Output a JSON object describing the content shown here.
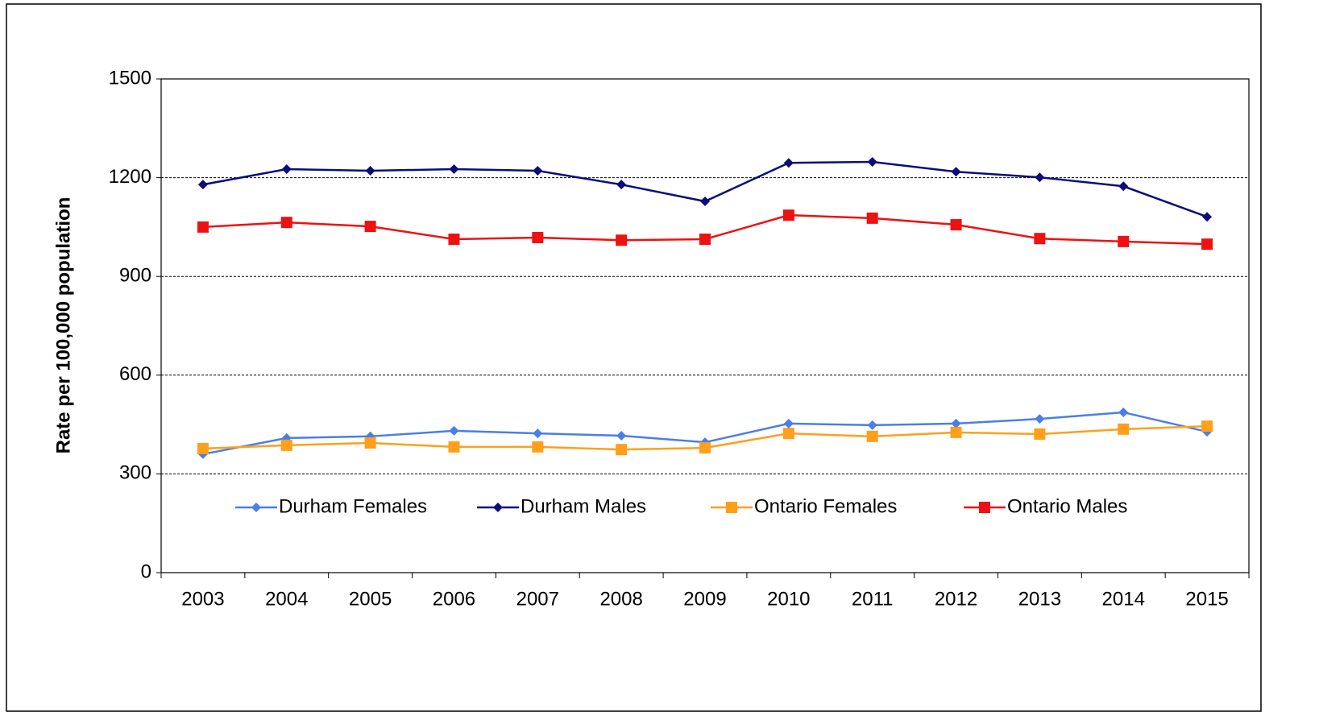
{
  "chart_data": {
    "type": "line",
    "y_label": "Rate per 100,000 population",
    "categories": [
      "2003",
      "2004",
      "2005",
      "2006",
      "2007",
      "2008",
      "2009",
      "2010",
      "2011",
      "2012",
      "2013",
      "2014",
      "2015"
    ],
    "series": [
      {
        "name": "Durham Females",
        "color": "#4a7ee8",
        "marker": "diamond",
        "values": [
          360,
          409,
          414,
          431,
          423,
          416,
          396,
          453,
          448,
          453,
          467,
          487,
          428
        ]
      },
      {
        "name": "Durham Males",
        "color": "#0c0c7a",
        "marker": "diamond",
        "values": [
          1179,
          1226,
          1221,
          1226,
          1221,
          1179,
          1128,
          1245,
          1248,
          1218,
          1201,
          1174,
          1081
        ]
      },
      {
        "name": "Ontario Females",
        "color": "#ff9f1c",
        "marker": "square",
        "values": [
          377,
          387,
          394,
          382,
          382,
          374,
          379,
          423,
          414,
          426,
          421,
          436,
          445
        ]
      },
      {
        "name": "Ontario Males",
        "color": "#ee1111",
        "marker": "square",
        "values": [
          1050,
          1064,
          1052,
          1013,
          1018,
          1010,
          1013,
          1086,
          1077,
          1057,
          1015,
          1006,
          998
        ]
      }
    ],
    "ylim": [
      0,
      1500
    ],
    "yticks": [
      0,
      300,
      600,
      900,
      1200,
      1500
    ],
    "grid": true
  }
}
